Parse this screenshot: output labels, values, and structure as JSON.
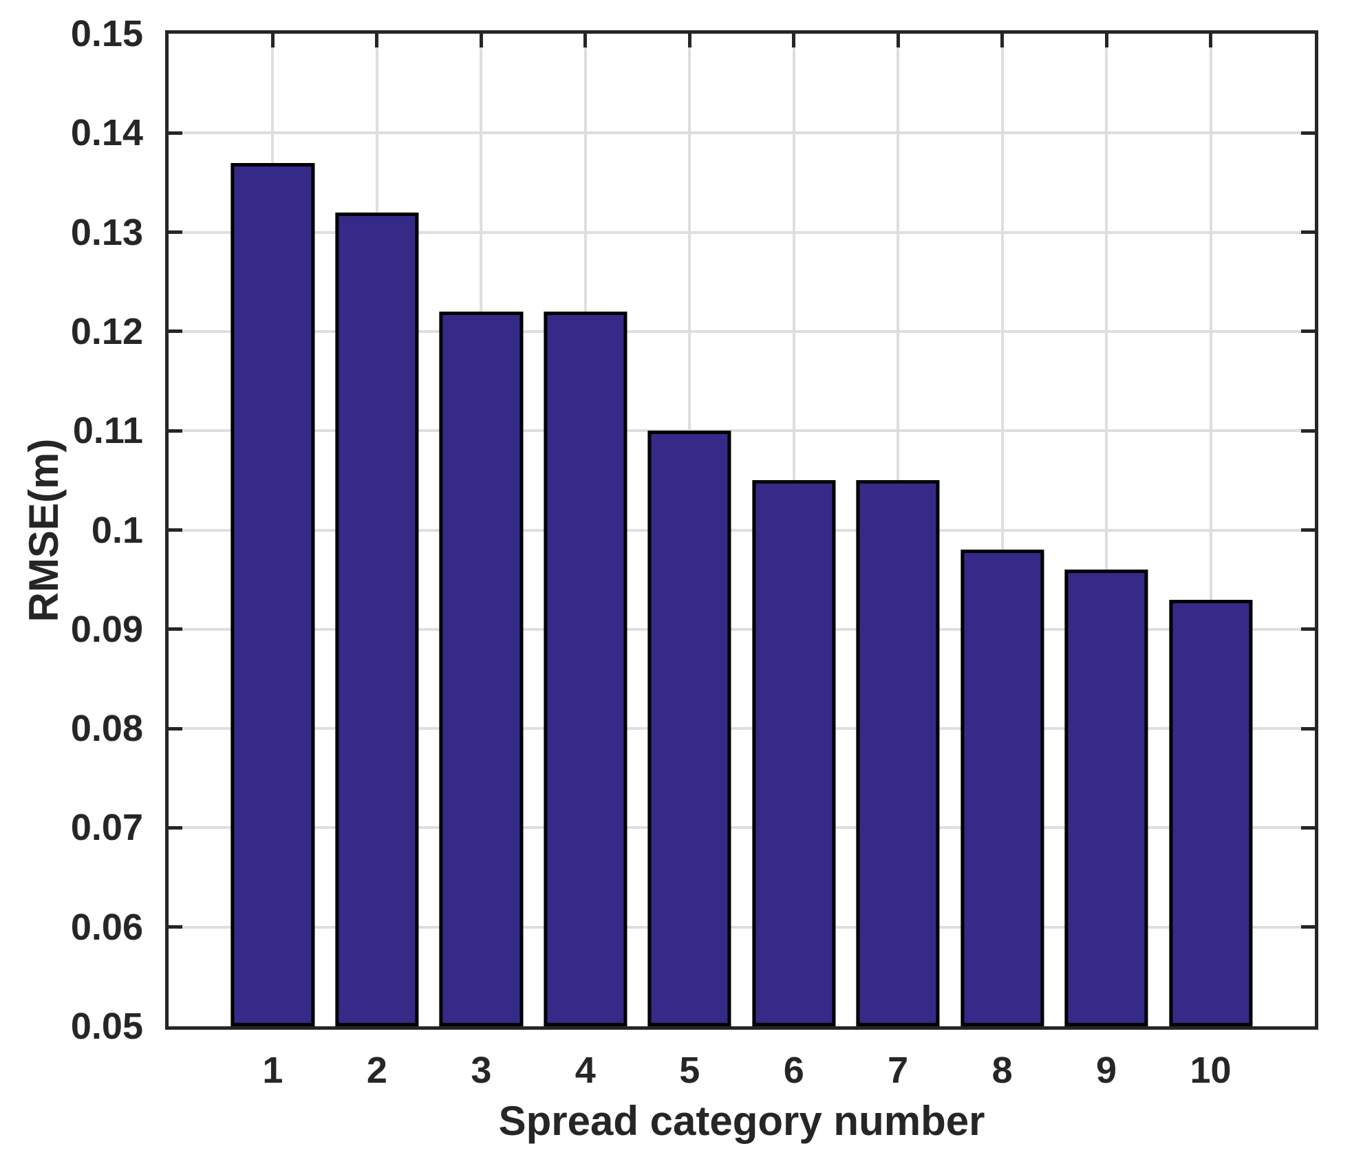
{
  "chart_data": {
    "type": "bar",
    "title": "",
    "xlabel": "Spread category number",
    "ylabel": "RMSE(m)",
    "categories": [
      "1",
      "2",
      "3",
      "4",
      "5",
      "6",
      "7",
      "8",
      "9",
      "10"
    ],
    "values": [
      0.137,
      0.132,
      0.122,
      0.122,
      0.11,
      0.105,
      0.105,
      0.098,
      0.096,
      0.093
    ],
    "ylim": [
      0.05,
      0.15
    ],
    "ytick_values": [
      0.05,
      0.06,
      0.07,
      0.08,
      0.09,
      0.1,
      0.11,
      0.12,
      0.13,
      0.14,
      0.15
    ],
    "ytick_labels": [
      "0.05",
      "0.06",
      "0.07",
      "0.08",
      "0.09",
      "0.1",
      "0.11",
      "0.12",
      "0.13",
      "0.14",
      "0.15"
    ],
    "grid": true,
    "legend": null,
    "bar_width_fraction": 0.8,
    "colors": {
      "bar_fill": "#352A87",
      "bar_edge": "#000000",
      "axis": "#262626",
      "grid": "#DEDEDE",
      "text": "#262626",
      "background": "#FFFFFF"
    }
  }
}
